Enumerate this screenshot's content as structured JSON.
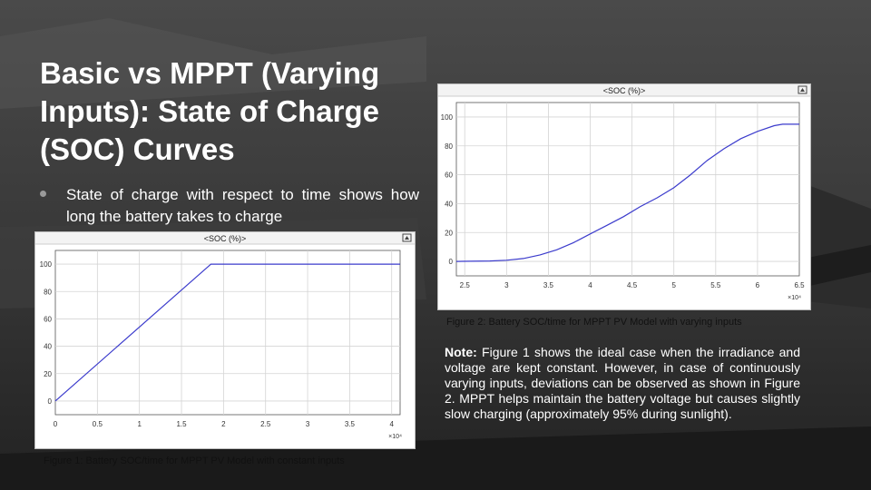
{
  "slide": {
    "title": "Basic vs MPPT (Varying Inputs): State of Charge (SOC) Curves",
    "bullet": "State of charge with respect to time shows how long the battery takes to charge",
    "note_label": "Note:",
    "note_text": " Figure 1 shows the ideal case when the irradiance and voltage are kept constant. However, in case of continuously varying inputs, deviations can be observed as shown in Figure 2. MPPT helps maintain the battery voltage but causes slightly slow charging (approximately 95% during sunlight).",
    "caption1": "Figure 1: Battery SOC/time for MPPT PV Model with constant inputs",
    "caption2": "Figure 2: Battery SOC/time for MPPT PV Model with varying inputs"
  },
  "colors": {
    "line": "#3b3bcc",
    "grid": "#d4d4d4",
    "axis": "#555555"
  },
  "chart_data": [
    {
      "type": "line",
      "title": "<SOC (%)>",
      "x_multiplier": "×10⁴",
      "xlim": [
        0,
        4.1
      ],
      "ylim": [
        -10,
        110
      ],
      "xticks": [
        0,
        0.5,
        1,
        1.5,
        2,
        2.5,
        3,
        3.5,
        4
      ],
      "xtick_labels": [
        "0",
        "0.5",
        "1",
        "1.5",
        "2",
        "2.5",
        "3",
        "3.5",
        "4"
      ],
      "yticks": [
        0,
        20,
        40,
        60,
        80,
        100
      ],
      "ytick_labels": [
        "0",
        "20",
        "40",
        "60",
        "80",
        "100"
      ],
      "series": [
        {
          "x": [
            0,
            1.85,
            4.1
          ],
          "y": [
            0,
            100,
            100
          ]
        }
      ]
    },
    {
      "type": "line",
      "title": "<SOC (%)>",
      "x_multiplier": "×10⁴",
      "xlim": [
        2.4,
        6.5
      ],
      "ylim": [
        -10,
        110
      ],
      "xticks": [
        2.5,
        3,
        3.5,
        4,
        4.5,
        5,
        5.5,
        6,
        6.5
      ],
      "xtick_labels": [
        "2.5",
        "3",
        "3.5",
        "4",
        "4.5",
        "5",
        "5.5",
        "6",
        "6.5"
      ],
      "yticks": [
        0,
        20,
        40,
        60,
        80,
        100
      ],
      "ytick_labels": [
        "0",
        "20",
        "40",
        "60",
        "80",
        "100"
      ],
      "series": [
        {
          "x": [
            2.4,
            2.8,
            3.0,
            3.2,
            3.4,
            3.6,
            3.8,
            4.0,
            4.2,
            4.4,
            4.6,
            4.8,
            5.0,
            5.2,
            5.4,
            5.6,
            5.8,
            6.0,
            6.2,
            6.3,
            6.5
          ],
          "y": [
            0,
            0.3,
            0.8,
            2,
            4.5,
            8,
            13,
            19,
            25,
            31,
            38,
            44,
            51,
            60,
            70,
            78,
            85,
            90,
            94,
            95,
            95
          ]
        }
      ]
    }
  ]
}
